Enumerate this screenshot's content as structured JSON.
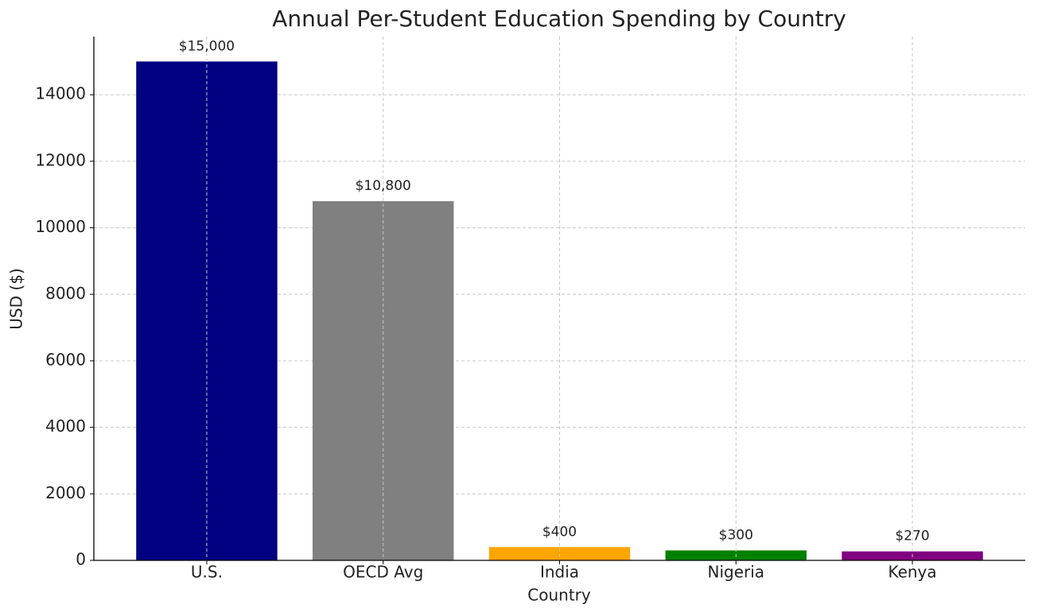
{
  "chart_data": {
    "type": "bar",
    "title": "Annual Per-Student Education Spending by Country",
    "x_label": "Country",
    "y_label": "USD ($)",
    "categories": [
      "U.S.",
      "OECD Avg",
      "India",
      "Nigeria",
      "Kenya"
    ],
    "values": [
      15000,
      10800,
      400,
      300,
      270
    ],
    "value_labels": [
      "$15,000",
      "$10,800",
      "$400",
      "$300",
      "$270"
    ],
    "colors": [
      "#000080",
      "#808080",
      "#ffa500",
      "#008000",
      "#800080"
    ],
    "ylim": [
      0,
      15750
    ],
    "yticks": [
      0,
      2000,
      4000,
      6000,
      8000,
      10000,
      12000,
      14000
    ],
    "grid": true
  }
}
